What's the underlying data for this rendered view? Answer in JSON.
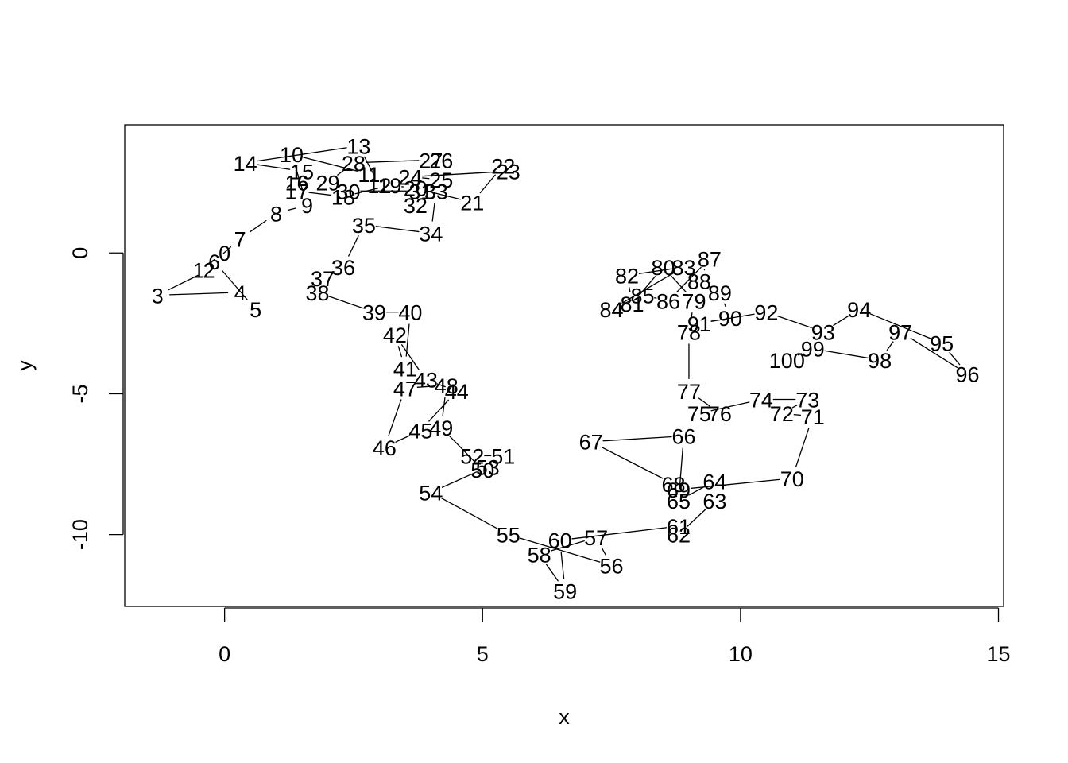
{
  "chart_data": {
    "type": "line",
    "title": "",
    "xlabel": "x",
    "ylabel": "y",
    "xlim": [
      -1.935,
      15.1
    ],
    "ylim": [
      -12.55,
      4.55
    ],
    "xticks": [
      0,
      5,
      10,
      15
    ],
    "yticks": [
      -10,
      -5,
      0
    ],
    "grid": false,
    "legend": "none",
    "series": [
      {
        "points": [
          {
            "label": "0",
            "x": 0.0,
            "y": 0.0
          },
          {
            "label": "1",
            "x": -0.5,
            "y": -0.6
          },
          {
            "label": "2",
            "x": -0.3,
            "y": -0.6
          },
          {
            "label": "3",
            "x": -1.3,
            "y": -1.5
          },
          {
            "label": "4",
            "x": 0.3,
            "y": -1.4
          },
          {
            "label": "5",
            "x": 0.6,
            "y": -2.0
          },
          {
            "label": "6",
            "x": -0.2,
            "y": -0.3
          },
          {
            "label": "7",
            "x": 0.3,
            "y": 0.5
          },
          {
            "label": "8",
            "x": 1.0,
            "y": 1.4
          },
          {
            "label": "9",
            "x": 1.6,
            "y": 1.7
          },
          {
            "label": "10",
            "x": 1.3,
            "y": 3.5
          },
          {
            "label": "11",
            "x": 2.8,
            "y": 2.8
          },
          {
            "label": "12",
            "x": 3.0,
            "y": 2.4
          },
          {
            "label": "13",
            "x": 2.6,
            "y": 3.8
          },
          {
            "label": "14",
            "x": 0.4,
            "y": 3.2
          },
          {
            "label": "15",
            "x": 1.5,
            "y": 2.9
          },
          {
            "label": "16",
            "x": 1.4,
            "y": 2.5
          },
          {
            "label": "17",
            "x": 1.4,
            "y": 2.2
          },
          {
            "label": "18",
            "x": 2.3,
            "y": 2.0
          },
          {
            "label": "19",
            "x": 3.2,
            "y": 2.4
          },
          {
            "label": "20",
            "x": 3.7,
            "y": 2.3
          },
          {
            "label": "21",
            "x": 4.8,
            "y": 1.8
          },
          {
            "label": "22",
            "x": 5.4,
            "y": 3.1
          },
          {
            "label": "23",
            "x": 5.5,
            "y": 2.9
          },
          {
            "label": "24",
            "x": 3.6,
            "y": 2.7
          },
          {
            "label": "25",
            "x": 4.2,
            "y": 2.6
          },
          {
            "label": "26",
            "x": 4.2,
            "y": 3.3
          },
          {
            "label": "27",
            "x": 4.0,
            "y": 3.3
          },
          {
            "label": "28",
            "x": 2.5,
            "y": 3.2
          },
          {
            "label": "29",
            "x": 2.0,
            "y": 2.5
          },
          {
            "label": "30",
            "x": 2.4,
            "y": 2.2
          },
          {
            "label": "31",
            "x": 3.8,
            "y": 2.2
          },
          {
            "label": "32",
            "x": 3.7,
            "y": 1.7
          },
          {
            "label": "33",
            "x": 4.1,
            "y": 2.2
          },
          {
            "label": "34",
            "x": 4.0,
            "y": 0.7
          },
          {
            "label": "35",
            "x": 2.7,
            "y": 1.0
          },
          {
            "label": "36",
            "x": 2.3,
            "y": -0.5
          },
          {
            "label": "37",
            "x": 1.9,
            "y": -0.9
          },
          {
            "label": "38",
            "x": 1.8,
            "y": -1.4
          },
          {
            "label": "39",
            "x": 2.9,
            "y": -2.1
          },
          {
            "label": "40",
            "x": 3.6,
            "y": -2.1
          },
          {
            "label": "41",
            "x": 3.5,
            "y": -4.1
          },
          {
            "label": "42",
            "x": 3.3,
            "y": -2.9
          },
          {
            "label": "43",
            "x": 3.9,
            "y": -4.5
          },
          {
            "label": "44",
            "x": 4.5,
            "y": -4.9
          },
          {
            "label": "45",
            "x": 3.8,
            "y": -6.3
          },
          {
            "label": "46",
            "x": 3.1,
            "y": -6.9
          },
          {
            "label": "47",
            "x": 3.5,
            "y": -4.8
          },
          {
            "label": "48",
            "x": 4.3,
            "y": -4.7
          },
          {
            "label": "49",
            "x": 4.2,
            "y": -6.2
          },
          {
            "label": "50",
            "x": 5.0,
            "y": -7.7
          },
          {
            "label": "51",
            "x": 5.4,
            "y": -7.2
          },
          {
            "label": "52",
            "x": 4.8,
            "y": -7.2
          },
          {
            "label": "53",
            "x": 5.1,
            "y": -7.6
          },
          {
            "label": "54",
            "x": 4.0,
            "y": -8.5
          },
          {
            "label": "55",
            "x": 5.5,
            "y": -10.0
          },
          {
            "label": "56",
            "x": 7.5,
            "y": -11.1
          },
          {
            "label": "57",
            "x": 7.2,
            "y": -10.1
          },
          {
            "label": "58",
            "x": 6.1,
            "y": -10.7
          },
          {
            "label": "59",
            "x": 6.6,
            "y": -12.0
          },
          {
            "label": "60",
            "x": 6.5,
            "y": -10.2
          },
          {
            "label": "61",
            "x": 8.8,
            "y": -9.7
          },
          {
            "label": "62",
            "x": 8.8,
            "y": -10.0
          },
          {
            "label": "63",
            "x": 9.5,
            "y": -8.8
          },
          {
            "label": "64",
            "x": 9.5,
            "y": -8.1
          },
          {
            "label": "65",
            "x": 8.8,
            "y": -8.8
          },
          {
            "label": "66",
            "x": 8.9,
            "y": -6.5
          },
          {
            "label": "67",
            "x": 7.1,
            "y": -6.7
          },
          {
            "label": "68",
            "x": 8.7,
            "y": -8.2
          },
          {
            "label": "69",
            "x": 8.8,
            "y": -8.4
          },
          {
            "label": "70",
            "x": 11.0,
            "y": -8.0
          },
          {
            "label": "71",
            "x": 11.4,
            "y": -5.8
          },
          {
            "label": "72",
            "x": 10.8,
            "y": -5.7
          },
          {
            "label": "73",
            "x": 11.3,
            "y": -5.2
          },
          {
            "label": "74",
            "x": 10.4,
            "y": -5.2
          },
          {
            "label": "75",
            "x": 9.2,
            "y": -5.7
          },
          {
            "label": "76",
            "x": 9.6,
            "y": -5.7
          },
          {
            "label": "77",
            "x": 9.0,
            "y": -4.9
          },
          {
            "label": "78",
            "x": 9.0,
            "y": -2.8
          },
          {
            "label": "79",
            "x": 9.1,
            "y": -1.7
          },
          {
            "label": "80",
            "x": 8.5,
            "y": -0.5
          },
          {
            "label": "81",
            "x": 7.9,
            "y": -1.8
          },
          {
            "label": "82",
            "x": 7.8,
            "y": -0.8
          },
          {
            "label": "83",
            "x": 8.9,
            "y": -0.5
          },
          {
            "label": "84",
            "x": 7.5,
            "y": -2.0
          },
          {
            "label": "85",
            "x": 8.1,
            "y": -1.5
          },
          {
            "label": "86",
            "x": 8.6,
            "y": -1.7
          },
          {
            "label": "87",
            "x": 9.4,
            "y": -0.2
          },
          {
            "label": "88",
            "x": 9.2,
            "y": -1.0
          },
          {
            "label": "89",
            "x": 9.6,
            "y": -1.4
          },
          {
            "label": "90",
            "x": 9.8,
            "y": -2.3
          },
          {
            "label": "91",
            "x": 9.2,
            "y": -2.5
          },
          {
            "label": "92",
            "x": 10.5,
            "y": -2.1
          },
          {
            "label": "93",
            "x": 11.6,
            "y": -2.8
          },
          {
            "label": "94",
            "x": 12.3,
            "y": -2.0
          },
          {
            "label": "95",
            "x": 13.9,
            "y": -3.2
          },
          {
            "label": "96",
            "x": 14.4,
            "y": -4.3
          },
          {
            "label": "97",
            "x": 13.1,
            "y": -2.8
          },
          {
            "label": "98",
            "x": 12.7,
            "y": -3.8
          },
          {
            "label": "99",
            "x": 11.4,
            "y": -3.4
          },
          {
            "label": "100",
            "x": 10.9,
            "y": -3.8
          }
        ]
      }
    ]
  }
}
